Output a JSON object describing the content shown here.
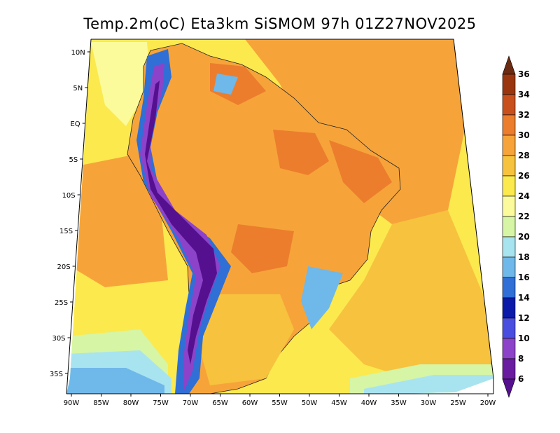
{
  "title": "Temp.2m(oC) Eta3km SiSMOM 97h 01Z27NOV2025",
  "lat_labels": [
    "10N",
    "5N",
    "EQ",
    "5S",
    "10S",
    "15S",
    "20S",
    "25S",
    "30S",
    "35S"
  ],
  "lon_labels": [
    "90W",
    "85W",
    "80W",
    "75W",
    "70W",
    "65W",
    "60W",
    "55W",
    "50W",
    "45W",
    "40W",
    "35W",
    "30W",
    "25W",
    "20W"
  ],
  "colorbar": {
    "labels": [
      "36",
      "34",
      "32",
      "30",
      "28",
      "26",
      "24",
      "22",
      "20",
      "18",
      "16",
      "14",
      "12",
      "10",
      "8",
      "6"
    ],
    "colors": [
      "#6b2b12",
      "#99360f",
      "#c8501d",
      "#ec7d2d",
      "#f6a43a",
      "#f7c23d",
      "#fbe94e",
      "#fbfb9c",
      "#d6f5a5",
      "#a8e4f0",
      "#6fb8ea",
      "#2f6fd6",
      "#0b1aa8",
      "#4a4ee0",
      "#8d43c9",
      "#6a1ca1",
      "#55108f"
    ]
  },
  "ocean_colors": {
    "warm": "#f6a43a",
    "mid": "#f7c23d",
    "cool": "#fbe94e",
    "pale": "#fbfb9c",
    "green": "#d6f5a5",
    "cyan": "#a8e4f0",
    "blue": "#6fb8ea"
  },
  "land_colors": {
    "hot": "#ec7d2d",
    "warm": "#f6a43a",
    "mild": "#f7c23d",
    "andes_high": "#55108f",
    "andes_mid": "#8d43c9",
    "andes_low": "#2f6fd6",
    "highland": "#6fb8ea"
  }
}
